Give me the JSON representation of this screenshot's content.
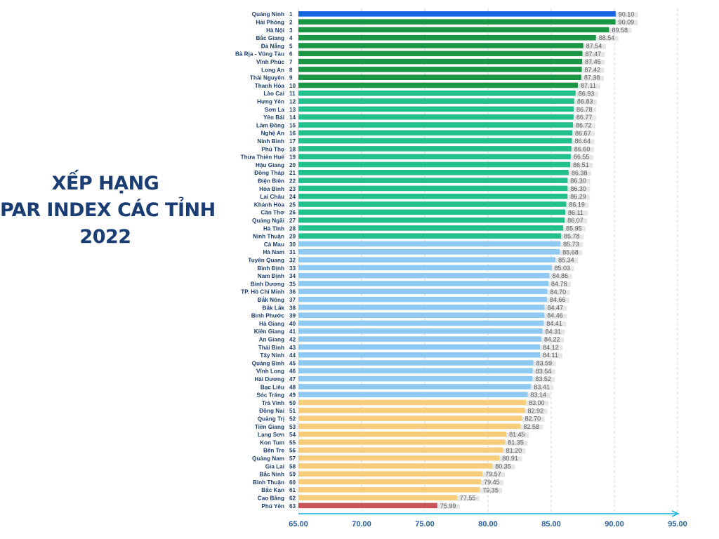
{
  "title_lines": [
    "XẾP HẠNG",
    "PAR INDEX CÁC TỈNH",
    "2022"
  ],
  "colors": {
    "title": "#1a3d73",
    "top1": "#1565e0",
    "top10": "#1b9645",
    "group_11_29": "#22c08c",
    "group_30_49": "#8ec9f2",
    "group_50_62": "#f7cd7c",
    "last": "#c8545a",
    "axis": "#29b7de",
    "gridline": "#cfd8e2",
    "shadow": "#e4e6e8"
  },
  "chart_data": {
    "type": "bar",
    "orientation": "horizontal",
    "title": "XẾP HẠNG PAR INDEX CÁC TỈNH 2022",
    "xlim": [
      65,
      95
    ],
    "x_ticks": [
      "65.00",
      "70.00",
      "75.00",
      "80.00",
      "85.00",
      "90.00",
      "95.00"
    ],
    "grid": "vertical dashed",
    "categories": [
      "Quảng Ninh",
      "Hải Phòng",
      "Hà Nội",
      "Bắc Giang",
      "Đà Nẵng",
      "Bà Rịa - Vũng Tàu",
      "Vĩnh Phúc",
      "Long An",
      "Thái Nguyên",
      "Thanh Hóa",
      "Lào Cai",
      "Hưng Yên",
      "Sơn La",
      "Yên Bái",
      "Lâm Đồng",
      "Nghệ An",
      "Ninh Bình",
      "Phú Thọ",
      "Thừa Thiên Huế",
      "Hậu Giang",
      "Đồng Tháp",
      "Điện Biên",
      "Hòa Bình",
      "Lai Châu",
      "Khánh Hòa",
      "Cần Thơ",
      "Quảng Ngãi",
      "Hà Tĩnh",
      "Ninh Thuận",
      "Cà Mau",
      "Hà Nam",
      "Tuyên Quang",
      "Bình Định",
      "Nam Định",
      "Bình Dương",
      "TP. Hồ Chí Minh",
      "Đắk Nông",
      "Đắk Lắk",
      "Bình Phước",
      "Hà Giang",
      "Kiên Giang",
      "An Giang",
      "Thái Bình",
      "Tây Ninh",
      "Quảng Bình",
      "Vĩnh Long",
      "Hải Dương",
      "Bạc Liêu",
      "Sóc Trăng",
      "Trà Vinh",
      "Đồng Nai",
      "Quảng Trị",
      "Tiền Giang",
      "Lạng Sơn",
      "Kon Tum",
      "Bến Tre",
      "Quảng Nam",
      "Gia Lai",
      "Bắc Ninh",
      "Bình Thuận",
      "Bắc Kạn",
      "Cao Bằng",
      "Phú Yên"
    ],
    "ranks": [
      "1",
      "2",
      "3",
      "4",
      "5",
      "6",
      "7",
      "8",
      "9",
      "10",
      "11",
      "12",
      "13",
      "14",
      "15",
      "16",
      "17",
      "18",
      "19",
      "20",
      "21",
      "22",
      "23",
      "24",
      "25",
      "26",
      "27",
      "28",
      "29",
      "30",
      "31",
      "32",
      "33",
      "34",
      "35",
      "36",
      "37",
      "38",
      "39",
      "40",
      "41",
      "42",
      "43",
      "44",
      "45",
      "46",
      "47",
      "48",
      "49",
      "50",
      "51",
      "52",
      "53",
      "54",
      "55",
      "56",
      "57",
      "58",
      "59",
      "60",
      "61",
      "62",
      "63"
    ],
    "values": [
      90.1,
      90.09,
      89.58,
      88.54,
      87.54,
      87.47,
      87.45,
      87.42,
      87.38,
      87.11,
      86.93,
      86.83,
      86.78,
      86.77,
      86.72,
      86.67,
      86.64,
      86.6,
      86.55,
      86.51,
      86.38,
      86.3,
      86.3,
      86.29,
      86.19,
      86.11,
      86.07,
      85.95,
      85.78,
      85.73,
      85.68,
      85.34,
      85.03,
      84.86,
      84.78,
      84.7,
      84.66,
      84.47,
      84.46,
      84.41,
      84.31,
      84.22,
      84.12,
      84.11,
      83.59,
      83.54,
      83.52,
      83.41,
      83.14,
      83.0,
      82.92,
      82.7,
      82.58,
      81.45,
      81.35,
      81.2,
      80.91,
      80.35,
      79.57,
      79.45,
      79.35,
      77.55,
      75.99
    ],
    "value_labels": [
      "90.10",
      "90.09",
      "89.58",
      "88.54",
      "87.54",
      "87.47",
      "87.45",
      "87.42",
      "87.38",
      "87.11",
      "86.93",
      "86.83",
      "86.78",
      "86.77",
      "86.72",
      "86.67",
      "86.64",
      "86.60",
      "86.55",
      "86.51",
      "86.38",
      "86.30",
      "86.30",
      "86.29",
      "86.19",
      "86.11",
      "86.07",
      "85.95",
      "85.78",
      "85.73",
      "85.68",
      "85.34",
      "85.03",
      "84.86",
      "84.78",
      "84.70",
      "84.66",
      "84.47",
      "84.46",
      "84.41",
      "84.31",
      "84.22",
      "84.12",
      "84.11",
      "83.59",
      "83.54",
      "83.52",
      "83.41",
      "83.14",
      "83.00",
      "82.92",
      "82.70",
      "82.58",
      "81.45",
      "81.35",
      "81.20",
      "80.91",
      "80.35",
      "79.57",
      "79.45",
      "79.35",
      "77.55",
      "75.99"
    ]
  }
}
